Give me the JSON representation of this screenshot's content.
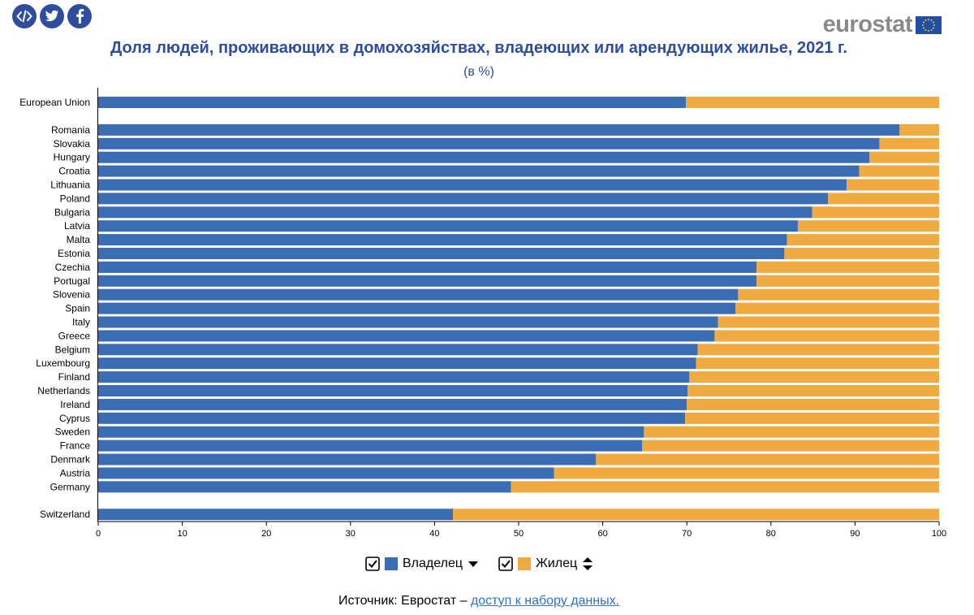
{
  "header": {
    "share_buttons": [
      {
        "icon": "embed-code-icon"
      },
      {
        "icon": "twitter-icon"
      },
      {
        "icon": "facebook-icon"
      }
    ],
    "logo_text": "eurostat",
    "title": "Доля людей, проживающих в домохозяйствах, владеющих или арендующих жилье, 2021 г.",
    "subtitle": "(в %)"
  },
  "colors": {
    "owner": "#3b6db5",
    "tenant": "#efab42",
    "title": "#2e4d9f"
  },
  "chart_data": {
    "type": "bar",
    "orientation": "horizontal",
    "stacked": true,
    "categories": [
      "European Union",
      "Romania",
      "Slovakia",
      "Hungary",
      "Croatia",
      "Lithuania",
      "Poland",
      "Bulgaria",
      "Latvia",
      "Malta",
      "Estonia",
      "Czechia",
      "Portugal",
      "Slovenia",
      "Spain",
      "Italy",
      "Greece",
      "Belgium",
      "Luxembourg",
      "Finland",
      "Netherlands",
      "Ireland",
      "Cyprus",
      "Sweden",
      "France",
      "Denmark",
      "Austria",
      "Germany",
      "Switzerland"
    ],
    "groups": [
      1,
      2,
      2,
      2,
      2,
      2,
      2,
      2,
      2,
      2,
      2,
      2,
      2,
      2,
      2,
      2,
      2,
      2,
      2,
      2,
      2,
      2,
      2,
      2,
      2,
      2,
      2,
      2,
      3
    ],
    "series": [
      {
        "name": "Владелец",
        "values": [
          69.9,
          95.3,
          92.9,
          91.7,
          90.5,
          89.0,
          86.8,
          84.9,
          83.2,
          81.9,
          81.6,
          78.3,
          78.3,
          76.1,
          75.8,
          73.7,
          73.3,
          71.3,
          71.1,
          70.3,
          70.1,
          70.0,
          69.8,
          64.9,
          64.7,
          59.2,
          54.2,
          49.1,
          42.2
        ]
      },
      {
        "name": "Жилец",
        "values": [
          30.1,
          4.7,
          7.1,
          8.3,
          9.5,
          11.0,
          13.2,
          15.1,
          16.8,
          18.1,
          18.4,
          21.7,
          21.7,
          23.9,
          24.2,
          26.3,
          26.7,
          28.7,
          28.9,
          29.7,
          29.9,
          30.0,
          30.2,
          35.1,
          35.3,
          40.8,
          45.8,
          50.9,
          57.8
        ]
      }
    ],
    "xlim": [
      0,
      100
    ],
    "xticks": [
      0,
      10,
      20,
      30,
      40,
      50,
      60,
      70,
      80,
      90,
      100
    ],
    "xlabel": "",
    "ylabel": "",
    "grid": false,
    "legend_position": "bottom"
  },
  "legend": {
    "owner_label": "Владелец",
    "tenant_label": "Жилец"
  },
  "footer": {
    "source_prefix": "Источник: Евростат –",
    "source_link": "доступ к набору данных."
  }
}
